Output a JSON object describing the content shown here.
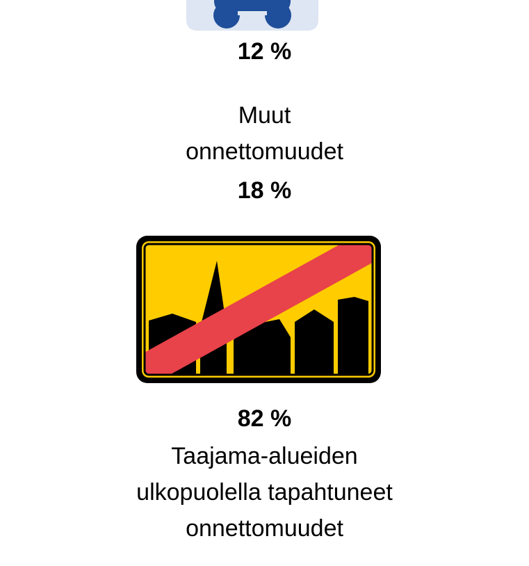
{
  "colors": {
    "sign_yellow": "#ffcc00",
    "sign_red": "#e8424a",
    "sign_black": "#000000",
    "icon_blue": "#1f4e9a",
    "icon_box_bg": "#dde6f2"
  },
  "icons": {
    "top": "car-icon",
    "middle": "end-of-built-up-area-sign-icon"
  },
  "top_stat": {
    "percent": "12 %"
  },
  "other_accidents": {
    "label_line1": "Muut",
    "label_line2": "onnettomuudet",
    "percent": "18 %"
  },
  "outside_urban": {
    "percent": "82 %",
    "label_line1": "Taajama-alueiden",
    "label_line2": "ulkopuolella tapahtuneet",
    "label_line3": "onnettomuudet"
  }
}
